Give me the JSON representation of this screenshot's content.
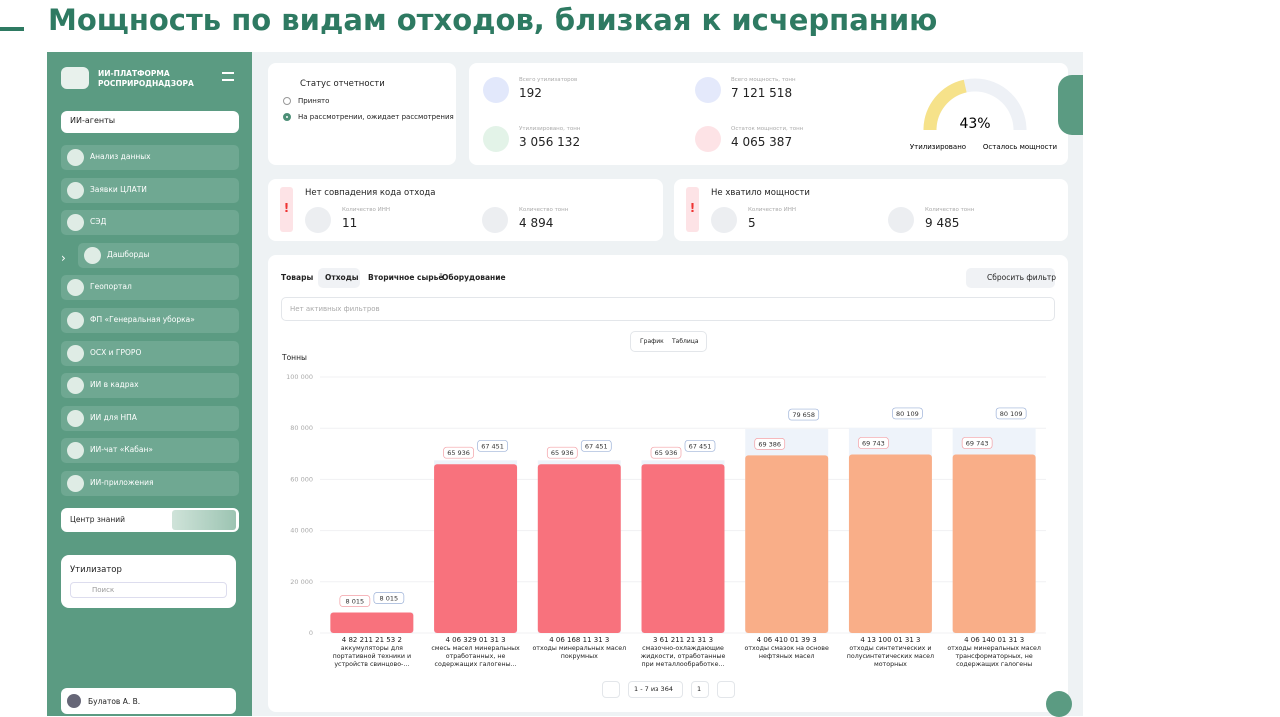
{
  "slide_title": "Мощность по видам отходов, близкая к исчерпанию",
  "sidebar": {
    "brand": "ИИ-ПЛАТФОРМА РОСПРИРОДНАДЗОРА",
    "agents_dropdown": "ИИ-агенты",
    "menu": [
      "Анализ данных",
      "Заявки ЦЛАТИ",
      "СЭД",
      "Дашборды",
      "Геопортал",
      "ФП «Генеральная уборка»",
      "ОСХ и ГРОРО",
      "ИИ в кадрах",
      "ИИ для НПА",
      "ИИ-чат «Кабан»",
      "ИИ-приложения"
    ],
    "knowledge": "Центр знаний",
    "utilizer_title": "Утилизатор",
    "search_placeholder": "Поиск",
    "user": "Булатов А. В."
  },
  "status": {
    "title": "Статус отчетности",
    "options": [
      "Принято",
      "На рассмотрении, ожидает рассмотрения"
    ]
  },
  "stats": [
    {
      "label": "Всего утилизаторов",
      "value": "192"
    },
    {
      "label": "Всего мощность, тонн",
      "value": "7 121 518"
    },
    {
      "label": "Утилизировано, тонн",
      "value": "3 056 132"
    },
    {
      "label": "Остаток мощности, тонн",
      "value": "4 065 387"
    }
  ],
  "gauge": {
    "percent": 43,
    "percent_label": "43%",
    "left_label": "Утилизировано",
    "right_label": "Осталось мощности"
  },
  "alerts": [
    {
      "title": "Нет совпадения кода отхода",
      "items": [
        {
          "label": "Количество ИНН",
          "value": "11"
        },
        {
          "label": "Количество тонн",
          "value": "4 894"
        }
      ]
    },
    {
      "title": "Не хватило мощности",
      "items": [
        {
          "label": "Количество ИНН",
          "value": "5"
        },
        {
          "label": "Количество тонн",
          "value": "9 485"
        }
      ]
    }
  ],
  "tabs": [
    "Товары",
    "Отходы",
    "Вторичное сырьё",
    "Оборудование"
  ],
  "reset": "Сбросить фильтр",
  "filter_placeholder": "Нет активных фильтров",
  "view_toggle": [
    "График",
    "Таблица"
  ],
  "pagination": {
    "range": "1 - 7 из 364",
    "page": "1"
  },
  "chart": {
    "type": "bar",
    "y_label": "Тонны",
    "categories": [
      "4 82 211 21 53 2",
      "4 06 329 01 31 3",
      "4 06 168 11 31 3",
      "3 61 211 21 31 3",
      "4 06 410 01 39 3",
      "4 13 100 01 31 3",
      "4 06 140 01 31 3"
    ],
    "descriptions": [
      "аккумуляторы для портативной техники и устройств свинцово-...",
      "смесь масел минеральных отработанных, не содержащих галогены...",
      "отходы минеральных масел покрумных",
      "смазочно-охлаждающие жидкости, отработанные при металлообработке...",
      "отходы смазок на основе нефтяных масел",
      "отходы синтетических и полусинтетических масел моторных",
      "отходы минеральных масел трансформаторных, не содержащих галогены"
    ],
    "values": [
      8015,
      65936,
      65936,
      65936,
      69386,
      69743,
      69743
    ],
    "value_labels": [
      "8 015",
      "65 936",
      "65 936",
      "65 936",
      "69 386",
      "69 743",
      "69 743"
    ],
    "colors": [
      "#f8727d",
      "#f8727d",
      "#f8727d",
      "#f8727d",
      "#f9ae88",
      "#f9ae88",
      "#f9ae88"
    ],
    "capacity": [
      8015,
      67451,
      67451,
      67451,
      79658,
      80109,
      80109
    ],
    "capacity_labels": [
      "8 015",
      "67 451",
      "67 451",
      "67 451",
      "79 658",
      "80 109",
      "80 109"
    ],
    "ylim": [
      0,
      100000
    ],
    "yticks": [
      0,
      {
        "value": 20000,
        "label": "20 000"
      },
      {
        "value": 40000,
        "label": "40 000"
      },
      {
        "value": 60000,
        "label": "60 000"
      },
      {
        "value": 80000,
        "label": "80 000"
      },
      {
        "value": 100000,
        "label": "100 000"
      }
    ],
    "grid": true
  }
}
